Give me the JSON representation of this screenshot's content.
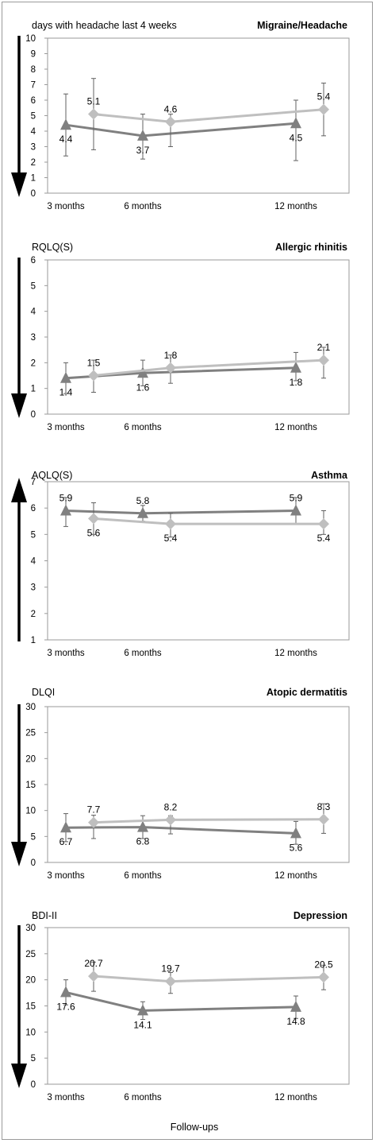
{
  "figure": {
    "xlabel": "Follow-ups"
  },
  "colors": {
    "dark_series": "#808080",
    "light_series": "#bfbfbf",
    "axis": "#9a9a9a",
    "arrow": "#000000",
    "text": "#000000"
  },
  "chart_data": [
    {
      "type": "line",
      "title": "Migraine/Headache",
      "ylabel": "days with headache last 4 weeks",
      "ylim": [
        0,
        10
      ],
      "yticks": [
        0,
        1,
        2,
        3,
        4,
        5,
        6,
        7,
        8,
        9,
        10
      ],
      "arrow_direction": "down",
      "categories": [
        "3 months",
        "6 months",
        "12 months"
      ],
      "x": [
        3,
        6,
        12
      ],
      "series": [
        {
          "marker": "triangle",
          "color": "#808080",
          "values": [
            4.4,
            3.7,
            4.5
          ],
          "labels": [
            "4.4",
            "3.7",
            "4.5"
          ],
          "error_low": [
            2.4,
            2.2,
            2.1
          ],
          "error_high": [
            6.4,
            5.1,
            6.0
          ]
        },
        {
          "marker": "diamond",
          "color": "#bfbfbf",
          "values": [
            5.1,
            4.6,
            5.4
          ],
          "labels": [
            "5.1",
            "4.6",
            "5.4"
          ],
          "error_low": [
            2.8,
            3.0,
            3.7
          ],
          "error_high": [
            7.4,
            5.1,
            7.1
          ]
        }
      ]
    },
    {
      "type": "line",
      "title": "Allergic rhinitis",
      "ylabel": "RQLQ(S)",
      "ylim": [
        0,
        6
      ],
      "yticks": [
        0,
        1,
        2,
        3,
        4,
        5,
        6
      ],
      "arrow_direction": "down",
      "categories": [
        "3 months",
        "6 months",
        "12 months"
      ],
      "x": [
        3,
        6,
        12
      ],
      "series": [
        {
          "marker": "triangle",
          "color": "#808080",
          "values": [
            1.4,
            1.6,
            1.8
          ],
          "labels": [
            "1.4",
            "1.6",
            "1.8"
          ],
          "error_low": [
            0.8,
            1.1,
            1.3
          ],
          "error_high": [
            2.0,
            2.1,
            2.4
          ]
        },
        {
          "marker": "diamond",
          "color": "#bfbfbf",
          "values": [
            1.5,
            1.8,
            2.1
          ],
          "labels": [
            "1.5",
            "1.8",
            "2.1"
          ],
          "error_low": [
            0.85,
            1.2,
            1.4
          ],
          "error_high": [
            2.1,
            2.3,
            2.6
          ]
        }
      ]
    },
    {
      "type": "line",
      "title": "Asthma",
      "ylabel": "AQLQ(S)",
      "ylim": [
        1,
        7
      ],
      "yticks": [
        1,
        2,
        3,
        4,
        5,
        6,
        7
      ],
      "arrow_direction": "up",
      "categories": [
        "3 months",
        "6 months",
        "12 months"
      ],
      "x": [
        3,
        6,
        12
      ],
      "series": [
        {
          "marker": "triangle",
          "color": "#808080",
          "values": [
            5.9,
            5.8,
            5.9
          ],
          "labels": [
            "5.9",
            "5.8",
            "5.9"
          ],
          "error_low": [
            5.3,
            5.5,
            5.4
          ],
          "error_high": [
            6.4,
            6.1,
            6.4
          ]
        },
        {
          "marker": "diamond",
          "color": "#bfbfbf",
          "values": [
            5.6,
            5.4,
            5.4
          ],
          "labels": [
            "5.6",
            "5.4",
            "5.4"
          ],
          "error_low": [
            5.0,
            4.9,
            5.0
          ],
          "error_high": [
            6.2,
            5.8,
            5.9
          ]
        }
      ]
    },
    {
      "type": "line",
      "title": "Atopic dermatitis",
      "ylabel": "DLQI",
      "ylim": [
        0,
        30
      ],
      "yticks": [
        0,
        5,
        10,
        15,
        20,
        25,
        30
      ],
      "arrow_direction": "down",
      "categories": [
        "3 months",
        "6 months",
        "12 months"
      ],
      "x": [
        3,
        6,
        12
      ],
      "series": [
        {
          "marker": "triangle",
          "color": "#808080",
          "values": [
            6.7,
            6.8,
            5.6
          ],
          "labels": [
            "6.7",
            "6.8",
            "5.6"
          ],
          "error_low": [
            4.0,
            4.6,
            3.5
          ],
          "error_high": [
            9.4,
            9.0,
            7.9
          ]
        },
        {
          "marker": "diamond",
          "color": "#bfbfbf",
          "values": [
            7.7,
            8.2,
            8.3
          ],
          "labels": [
            "7.7",
            "8.2",
            "8.3"
          ],
          "error_low": [
            4.6,
            5.5,
            5.6
          ],
          "error_high": [
            9.1,
            9.0,
            11.3
          ]
        }
      ]
    },
    {
      "type": "line",
      "title": "Depression",
      "ylabel": "BDI-II",
      "ylim": [
        0,
        30
      ],
      "yticks": [
        0,
        5,
        10,
        15,
        20,
        25,
        30
      ],
      "arrow_direction": "down",
      "categories": [
        "3 months",
        "6 months",
        "12 months"
      ],
      "x": [
        3,
        6,
        12
      ],
      "series": [
        {
          "marker": "triangle",
          "color": "#808080",
          "values": [
            17.6,
            14.1,
            14.8
          ],
          "labels": [
            "17.6",
            "14.1",
            "14.8"
          ],
          "error_low": [
            15.2,
            12.4,
            12.6
          ],
          "error_high": [
            20.0,
            15.8,
            16.9
          ]
        },
        {
          "marker": "diamond",
          "color": "#bfbfbf",
          "values": [
            20.7,
            19.7,
            20.5
          ],
          "labels": [
            "20.7",
            "19.7",
            "20.5"
          ],
          "error_low": [
            17.8,
            17.4,
            18.1
          ],
          "error_high": [
            23.4,
            21.4,
            22.8
          ]
        }
      ]
    }
  ]
}
